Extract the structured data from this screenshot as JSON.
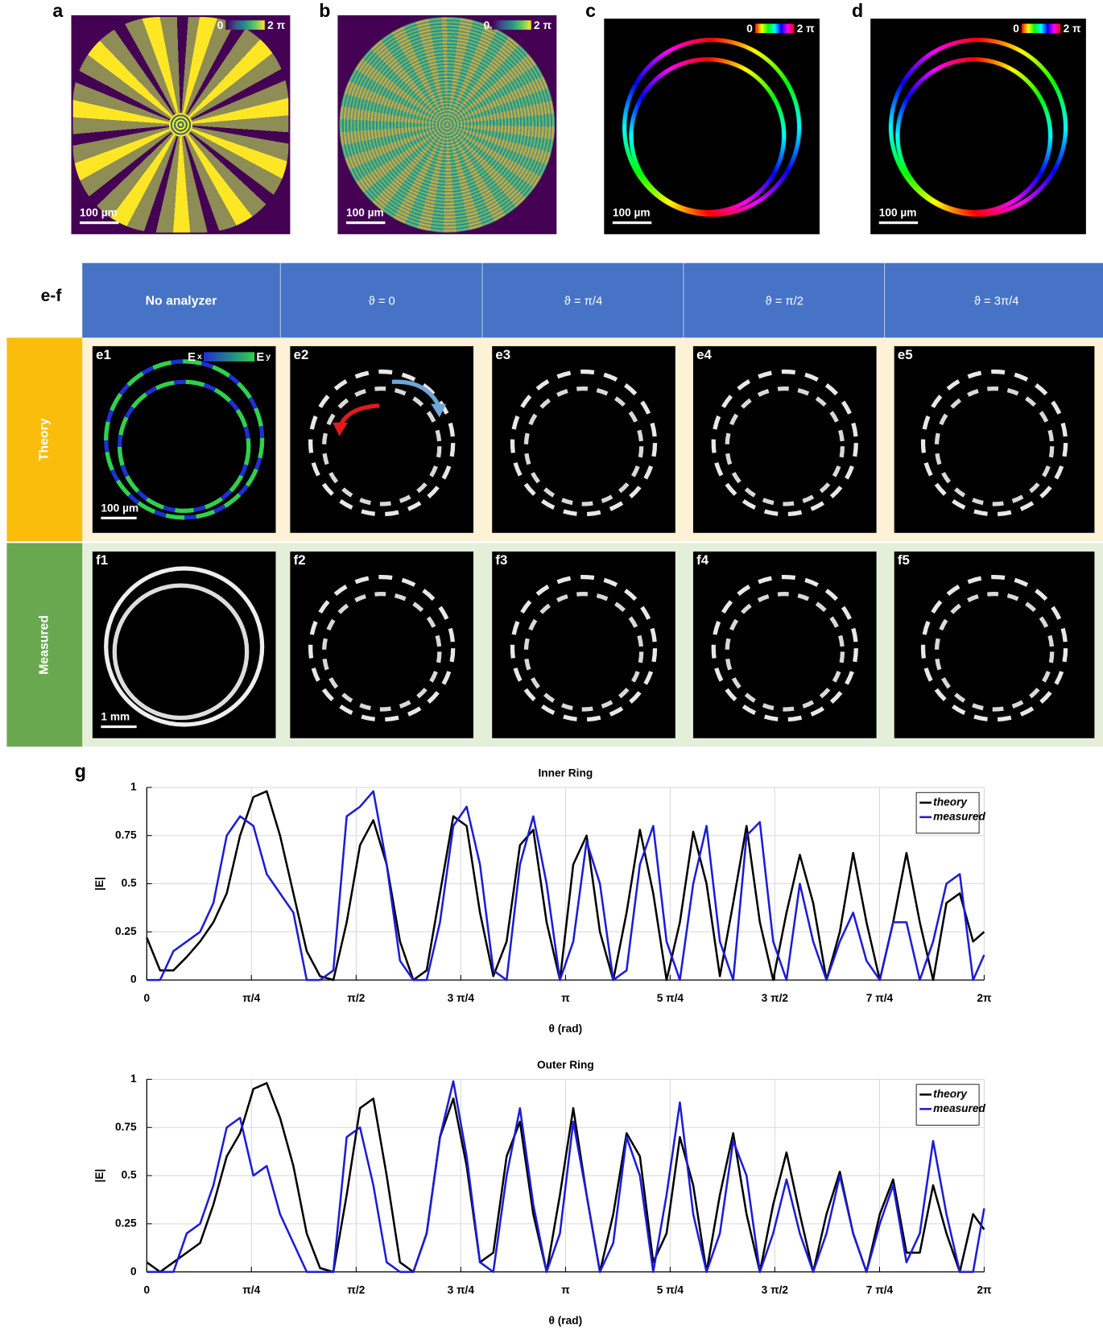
{
  "top_panels": [
    {
      "label": "a",
      "colorbar_min": "0",
      "colorbar_max": "2 π",
      "scale_bar": "100 µm"
    },
    {
      "label": "b",
      "colorbar_min": "0",
      "colorbar_max": "2 π",
      "scale_bar": "100 µm"
    },
    {
      "label": "c",
      "colorbar_min": "0",
      "colorbar_max": "2 π",
      "scale_bar": "100 µm"
    },
    {
      "label": "d",
      "colorbar_min": "0",
      "colorbar_max": "2 π",
      "scale_bar": "100 µm"
    }
  ],
  "grid": {
    "label": "e-f",
    "columns": [
      "No analyzer",
      "ϑ = 0",
      "ϑ = π/4",
      "ϑ = π/2",
      "ϑ = 3π/4"
    ],
    "rows": [
      {
        "label": "Theory",
        "cells": [
          "e1",
          "e2",
          "e3",
          "e4",
          "e5"
        ],
        "scale_bar": "100 µm"
      },
      {
        "label": "Measured",
        "cells": [
          "f1",
          "f2",
          "f3",
          "f4",
          "f5"
        ],
        "scale_bar": "1 mm"
      }
    ],
    "e1_legend": {
      "left": "E",
      "left_sub": "x",
      "right": "E",
      "right_sub": "y"
    }
  },
  "panel_g_label": "g",
  "chart_data": [
    {
      "type": "line",
      "title": "Inner Ring",
      "x_label": "θ (rad)",
      "y_label": "|E|",
      "x": [
        0,
        0.1,
        0.2,
        0.3,
        0.4,
        0.5,
        0.6,
        0.7,
        0.8,
        0.9,
        1,
        1.1,
        1.2,
        1.3,
        1.4,
        1.5,
        1.6,
        1.7,
        1.8,
        1.9,
        2,
        2.1,
        2.2,
        2.3,
        2.4,
        2.5,
        2.6,
        2.7,
        2.8,
        2.9,
        3,
        3.1,
        3.2,
        3.3,
        3.4,
        3.5,
        3.6,
        3.7,
        3.8,
        3.9,
        4,
        4.1,
        4.2,
        4.3,
        4.4,
        4.5,
        4.6,
        4.7,
        4.8,
        4.9,
        5,
        5.1,
        5.2,
        5.3,
        5.4,
        5.5,
        5.6,
        5.7,
        5.8,
        5.9,
        6,
        6.1,
        6.2,
        6.283
      ],
      "series": [
        {
          "name": "theory",
          "color": "#000000",
          "values": [
            0.22,
            0.05,
            0.05,
            0.12,
            0.2,
            0.3,
            0.45,
            0.75,
            0.95,
            0.98,
            0.75,
            0.45,
            0.15,
            0.02,
            0,
            0.3,
            0.7,
            0.83,
            0.6,
            0.2,
            0,
            0.05,
            0.45,
            0.85,
            0.8,
            0.35,
            0.02,
            0.2,
            0.7,
            0.78,
            0.3,
            0,
            0.6,
            0.75,
            0.25,
            0,
            0.35,
            0.78,
            0.45,
            0,
            0.3,
            0.77,
            0.5,
            0.02,
            0.4,
            0.8,
            0.3,
            0,
            0.35,
            0.65,
            0.4,
            0,
            0.25,
            0.66,
            0.3,
            0,
            0.3,
            0.66,
            0.3,
            0,
            0.4,
            0.45,
            0.2,
            0.25
          ]
        },
        {
          "name": "measured",
          "color": "#1c1cd6",
          "values": [
            0,
            0,
            0.15,
            0.2,
            0.25,
            0.4,
            0.75,
            0.85,
            0.8,
            0.55,
            0.45,
            0.35,
            0,
            0,
            0.05,
            0.85,
            0.9,
            0.98,
            0.6,
            0.1,
            0,
            0,
            0.3,
            0.8,
            0.9,
            0.6,
            0.05,
            0,
            0.6,
            0.85,
            0.5,
            0,
            0.2,
            0.72,
            0.5,
            0,
            0.05,
            0.6,
            0.8,
            0.2,
            0,
            0.5,
            0.8,
            0.2,
            0,
            0.75,
            0.82,
            0.2,
            0,
            0.5,
            0.2,
            0,
            0.2,
            0.35,
            0.1,
            0,
            0.3,
            0.3,
            0,
            0.2,
            0.5,
            0.55,
            0,
            0.13
          ]
        }
      ],
      "xlim": [
        0,
        6.283
      ],
      "xticks": [
        0,
        {
          "value": 0.785,
          "label": "π/4"
        },
        {
          "value": 1.571,
          "label": "π/2"
        },
        {
          "value": 2.356,
          "label": "3 π/4"
        },
        {
          "value": 3.142,
          "label": "π"
        },
        {
          "value": 3.927,
          "label": "5 π/4"
        },
        {
          "value": 4.712,
          "label": "3 π/2"
        },
        {
          "value": 5.498,
          "label": "7 π/4"
        },
        {
          "value": 6.283,
          "label": "2π"
        }
      ],
      "ylim": [
        0,
        1
      ],
      "yticks": [
        0,
        0.25,
        0.5,
        0.75,
        1
      ],
      "grid": true,
      "legend": "upper right"
    },
    {
      "type": "line",
      "title": "Outer Ring",
      "x_label": "θ (rad)",
      "y_label": "|E|",
      "x": [
        0,
        0.1,
        0.2,
        0.3,
        0.4,
        0.5,
        0.6,
        0.7,
        0.8,
        0.9,
        1,
        1.1,
        1.2,
        1.3,
        1.4,
        1.5,
        1.6,
        1.7,
        1.8,
        1.9,
        2,
        2.1,
        2.2,
        2.3,
        2.4,
        2.5,
        2.6,
        2.7,
        2.8,
        2.9,
        3,
        3.1,
        3.2,
        3.3,
        3.4,
        3.5,
        3.6,
        3.7,
        3.8,
        3.9,
        4,
        4.1,
        4.2,
        4.3,
        4.4,
        4.5,
        4.6,
        4.7,
        4.8,
        4.9,
        5,
        5.1,
        5.2,
        5.3,
        5.4,
        5.5,
        5.6,
        5.7,
        5.8,
        5.9,
        6,
        6.1,
        6.2,
        6.283
      ],
      "series": [
        {
          "name": "theory",
          "color": "#000000",
          "values": [
            0.05,
            0,
            0.05,
            0.1,
            0.15,
            0.35,
            0.6,
            0.72,
            0.95,
            0.98,
            0.8,
            0.55,
            0.2,
            0.02,
            0,
            0.4,
            0.85,
            0.9,
            0.5,
            0.05,
            0,
            0.2,
            0.7,
            0.9,
            0.55,
            0.05,
            0.1,
            0.6,
            0.78,
            0.3,
            0,
            0.4,
            0.85,
            0.4,
            0,
            0.3,
            0.72,
            0.6,
            0.05,
            0.2,
            0.7,
            0.45,
            0,
            0.4,
            0.72,
            0.3,
            0,
            0.35,
            0.62,
            0.3,
            0,
            0.3,
            0.52,
            0.2,
            0,
            0.3,
            0.48,
            0.1,
            0.1,
            0.45,
            0.2,
            0,
            0.3,
            0.22
          ]
        },
        {
          "name": "measured",
          "color": "#1c1cd6",
          "values": [
            0,
            0,
            0,
            0.2,
            0.25,
            0.45,
            0.75,
            0.8,
            0.5,
            0.55,
            0.3,
            0.15,
            0,
            0,
            0,
            0.7,
            0.75,
            0.45,
            0.05,
            0,
            0,
            0.2,
            0.7,
            0.99,
            0.6,
            0.05,
            0,
            0.5,
            0.85,
            0.35,
            0,
            0.2,
            0.78,
            0.4,
            0,
            0.15,
            0.7,
            0.5,
            0,
            0.4,
            0.88,
            0.3,
            0,
            0.2,
            0.68,
            0.5,
            0,
            0.2,
            0.48,
            0.2,
            0,
            0.2,
            0.5,
            0.2,
            0,
            0.25,
            0.45,
            0.05,
            0.2,
            0.68,
            0.3,
            0,
            0,
            0.33
          ]
        }
      ],
      "xlim": [
        0,
        6.283
      ],
      "xticks": [
        0,
        {
          "value": 0.785,
          "label": "π/4"
        },
        {
          "value": 1.571,
          "label": "π/2"
        },
        {
          "value": 2.356,
          "label": "3 π/4"
        },
        {
          "value": 3.142,
          "label": "π"
        },
        {
          "value": 3.927,
          "label": "5 π/4"
        },
        {
          "value": 4.712,
          "label": "3 π/2"
        },
        {
          "value": 5.498,
          "label": "7 π/4"
        },
        {
          "value": 6.283,
          "label": "2π"
        }
      ],
      "ylim": [
        0,
        1
      ],
      "yticks": [
        0,
        0.25,
        0.5,
        0.75,
        1
      ],
      "grid": true,
      "legend": "upper right"
    }
  ]
}
